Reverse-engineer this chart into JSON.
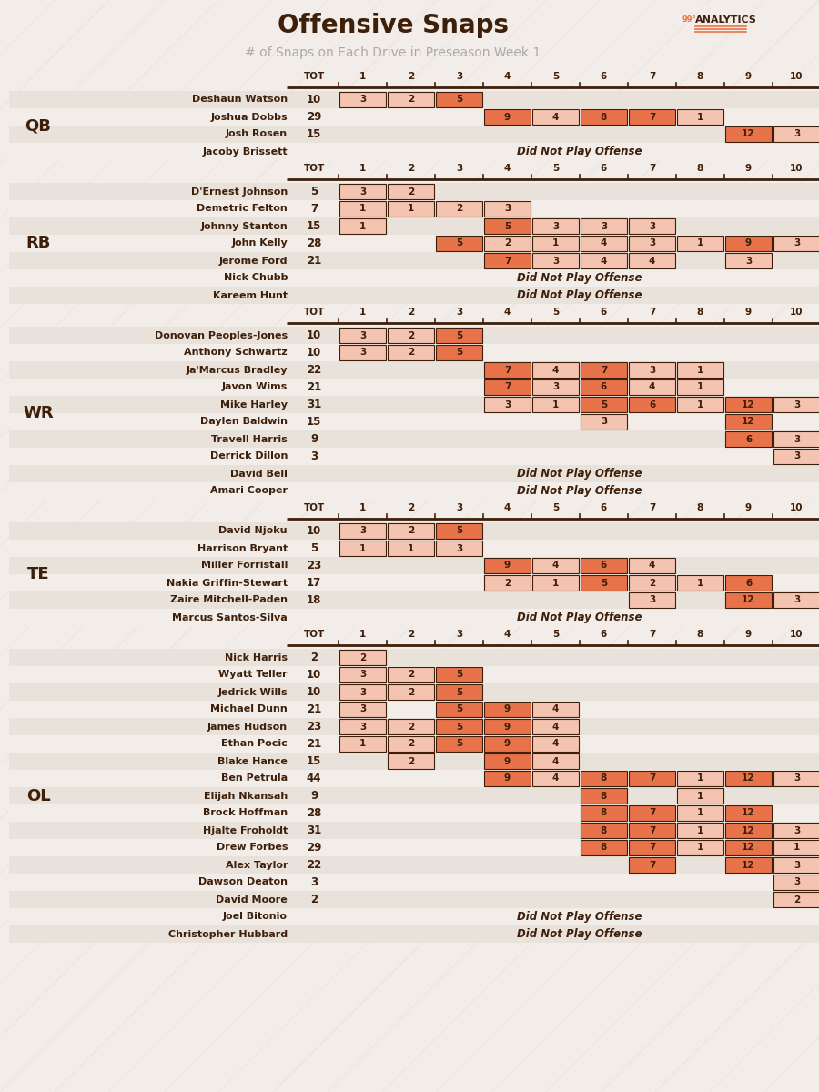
{
  "title": "Offensive Snaps",
  "subtitle": "# of Snaps on Each Drive in Preseason Week 1",
  "bg_color": "#f2ede8",
  "cell_color_dark": "#e8724a",
  "cell_color_light": "#f5c4b0",
  "text_color": "#3d1f0a",
  "groups": [
    {
      "label": "QB",
      "players": [
        {
          "name": "Deshaun Watson",
          "tot": 10,
          "snaps": {
            "1": 3,
            "2": 2,
            "3": 5
          },
          "dnp": false
        },
        {
          "name": "Joshua Dobbs",
          "tot": 29,
          "snaps": {
            "4": 9,
            "5": 4,
            "6": 8,
            "7": 7,
            "8": 1
          },
          "dnp": false
        },
        {
          "name": "Josh Rosen",
          "tot": 15,
          "snaps": {
            "9": 12,
            "10": 3
          },
          "dnp": false
        },
        {
          "name": "Jacoby Brissett",
          "tot": null,
          "snaps": {},
          "dnp": true
        }
      ]
    },
    {
      "label": "RB",
      "players": [
        {
          "name": "D'Ernest Johnson",
          "tot": 5,
          "snaps": {
            "1": 3,
            "2": 2
          },
          "dnp": false
        },
        {
          "name": "Demetric Felton",
          "tot": 7,
          "snaps": {
            "1": 1,
            "2": 1,
            "3": 2,
            "4": 3
          },
          "dnp": false
        },
        {
          "name": "Johnny Stanton",
          "tot": 15,
          "snaps": {
            "1": 1,
            "4": 5,
            "5": 3,
            "6": 3,
            "7": 3
          },
          "dnp": false
        },
        {
          "name": "John Kelly",
          "tot": 28,
          "snaps": {
            "3": 5,
            "4": 2,
            "5": 1,
            "6": 4,
            "7": 3,
            "8": 1,
            "9": 9,
            "10": 3
          },
          "dnp": false
        },
        {
          "name": "Jerome Ford",
          "tot": 21,
          "snaps": {
            "4": 7,
            "5": 3,
            "6": 4,
            "7": 4,
            "9": 3
          },
          "dnp": false
        },
        {
          "name": "Nick Chubb",
          "tot": null,
          "snaps": {},
          "dnp": true
        },
        {
          "name": "Kareem Hunt",
          "tot": null,
          "snaps": {},
          "dnp": true
        }
      ]
    },
    {
      "label": "WR",
      "players": [
        {
          "name": "Donovan Peoples-Jones",
          "tot": 10,
          "snaps": {
            "1": 3,
            "2": 2,
            "3": 5
          },
          "dnp": false
        },
        {
          "name": "Anthony Schwartz",
          "tot": 10,
          "snaps": {
            "1": 3,
            "2": 2,
            "3": 5
          },
          "dnp": false
        },
        {
          "name": "Ja'Marcus Bradley",
          "tot": 22,
          "snaps": {
            "4": 7,
            "5": 4,
            "6": 7,
            "7": 3,
            "8": 1
          },
          "dnp": false
        },
        {
          "name": "Javon Wims",
          "tot": 21,
          "snaps": {
            "4": 7,
            "5": 3,
            "6": 6,
            "7": 4,
            "8": 1
          },
          "dnp": false
        },
        {
          "name": "Mike Harley",
          "tot": 31,
          "snaps": {
            "4": 3,
            "5": 1,
            "6": 5,
            "7": 6,
            "8": 1,
            "9": 12,
            "10": 3
          },
          "dnp": false
        },
        {
          "name": "Daylen Baldwin",
          "tot": 15,
          "snaps": {
            "6": 3,
            "9": 12
          },
          "dnp": false
        },
        {
          "name": "Travell Harris",
          "tot": 9,
          "snaps": {
            "9": 6,
            "10": 3
          },
          "dnp": false
        },
        {
          "name": "Derrick Dillon",
          "tot": 3,
          "snaps": {
            "10": 3
          },
          "dnp": false
        },
        {
          "name": "David Bell",
          "tot": null,
          "snaps": {},
          "dnp": true
        },
        {
          "name": "Amari Cooper",
          "tot": null,
          "snaps": {},
          "dnp": true
        }
      ]
    },
    {
      "label": "TE",
      "players": [
        {
          "name": "David Njoku",
          "tot": 10,
          "snaps": {
            "1": 3,
            "2": 2,
            "3": 5
          },
          "dnp": false
        },
        {
          "name": "Harrison Bryant",
          "tot": 5,
          "snaps": {
            "1": 1,
            "2": 1,
            "3": 3
          },
          "dnp": false
        },
        {
          "name": "Miller Forristall",
          "tot": 23,
          "snaps": {
            "4": 9,
            "5": 4,
            "6": 6,
            "7": 4
          },
          "dnp": false
        },
        {
          "name": "Nakia Griffin-Stewart",
          "tot": 17,
          "snaps": {
            "4": 2,
            "5": 1,
            "6": 5,
            "7": 2,
            "8": 1,
            "9": 6
          },
          "dnp": false
        },
        {
          "name": "Zaire Mitchell-Paden",
          "tot": 18,
          "snaps": {
            "7": 3,
            "9": 12,
            "10": 3
          },
          "dnp": false
        },
        {
          "name": "Marcus Santos-Silva",
          "tot": null,
          "snaps": {},
          "dnp": true
        }
      ]
    },
    {
      "label": "OL",
      "players": [
        {
          "name": "Nick Harris",
          "tot": 2,
          "snaps": {
            "1": 2
          },
          "dnp": false
        },
        {
          "name": "Wyatt Teller",
          "tot": 10,
          "snaps": {
            "1": 3,
            "2": 2,
            "3": 5
          },
          "dnp": false
        },
        {
          "name": "Jedrick Wills",
          "tot": 10,
          "snaps": {
            "1": 3,
            "2": 2,
            "3": 5
          },
          "dnp": false
        },
        {
          "name": "Michael Dunn",
          "tot": 21,
          "snaps": {
            "1": 3,
            "3": 5,
            "4": 9,
            "5": 4
          },
          "dnp": false
        },
        {
          "name": "James Hudson",
          "tot": 23,
          "snaps": {
            "1": 3,
            "2": 2,
            "3": 5,
            "4": 9,
            "5": 4
          },
          "dnp": false
        },
        {
          "name": "Ethan Pocic",
          "tot": 21,
          "snaps": {
            "1": 1,
            "2": 2,
            "3": 5,
            "4": 9,
            "5": 4
          },
          "dnp": false
        },
        {
          "name": "Blake Hance",
          "tot": 15,
          "snaps": {
            "2": 2,
            "4": 9,
            "5": 4
          },
          "dnp": false
        },
        {
          "name": "Ben Petrula",
          "tot": 44,
          "snaps": {
            "4": 9,
            "5": 4,
            "6": 8,
            "7": 7,
            "8": 1,
            "9": 12,
            "10": 3
          },
          "dnp": false
        },
        {
          "name": "Elijah Nkansah",
          "tot": 9,
          "snaps": {
            "6": 8,
            "8": 1
          },
          "dnp": false
        },
        {
          "name": "Brock Hoffman",
          "tot": 28,
          "snaps": {
            "6": 8,
            "7": 7,
            "8": 1,
            "9": 12
          },
          "dnp": false
        },
        {
          "name": "Hjalte Froholdt",
          "tot": 31,
          "snaps": {
            "6": 8,
            "7": 7,
            "8": 1,
            "9": 12,
            "10": 3
          },
          "dnp": false
        },
        {
          "name": "Drew Forbes",
          "tot": 29,
          "snaps": {
            "6": 8,
            "7": 7,
            "8": 1,
            "9": 12,
            "10": 1
          },
          "dnp": false
        },
        {
          "name": "Alex Taylor",
          "tot": 22,
          "snaps": {
            "7": 7,
            "9": 12,
            "10": 3
          },
          "dnp": false
        },
        {
          "name": "Dawson Deaton",
          "tot": 3,
          "snaps": {
            "10": 3
          },
          "dnp": false
        },
        {
          "name": "David Moore",
          "tot": 2,
          "snaps": {
            "10": 2
          },
          "dnp": false
        },
        {
          "name": "Joel Bitonio",
          "tot": null,
          "snaps": {},
          "dnp": true
        },
        {
          "name": "Christopher Hubbard",
          "tot": null,
          "snaps": {},
          "dnp": true
        }
      ]
    }
  ]
}
